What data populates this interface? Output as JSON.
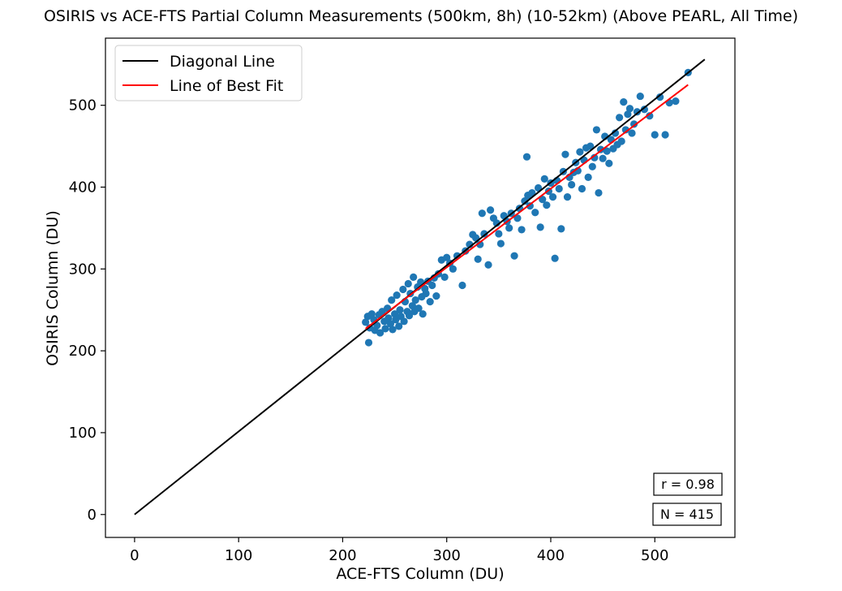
{
  "chart_data": {
    "type": "scatter",
    "title": "OSIRIS vs ACE-FTS Partial Column Measurements (500km, 8h) (10-52km) (Above PEARL, All Time)",
    "xlabel": "ACE-FTS Column (DU)",
    "ylabel": "OSIRIS Column (DU)",
    "xlim": [
      -28,
      577
    ],
    "ylim": [
      -28,
      582
    ],
    "xticks": [
      0,
      100,
      200,
      300,
      400,
      500
    ],
    "yticks": [
      0,
      100,
      200,
      300,
      400,
      500
    ],
    "grid": false,
    "legend_position": "top-left",
    "legend": [
      "Diagonal Line",
      "Line of Best Fit"
    ],
    "stats": [
      "r = 0.98",
      "N = 415"
    ],
    "lines": [
      {
        "name": "Diagonal Line",
        "color": "#000000",
        "x": [
          0,
          548
        ],
        "y": [
          0,
          556
        ]
      },
      {
        "name": "Line of Best Fit",
        "color": "#ff0000",
        "x": [
          222,
          532
        ],
        "y": [
          227,
          525
        ]
      }
    ],
    "series": [
      {
        "color": "#1f77b4",
        "points": [
          [
            222,
            235
          ],
          [
            224,
            242
          ],
          [
            225,
            210
          ],
          [
            226,
            228
          ],
          [
            228,
            245
          ],
          [
            230,
            238
          ],
          [
            231,
            225
          ],
          [
            233,
            231
          ],
          [
            235,
            244
          ],
          [
            236,
            222
          ],
          [
            238,
            248
          ],
          [
            240,
            236
          ],
          [
            241,
            227
          ],
          [
            243,
            252
          ],
          [
            244,
            240
          ],
          [
            246,
            233
          ],
          [
            247,
            262
          ],
          [
            248,
            226
          ],
          [
            250,
            245
          ],
          [
            251,
            238
          ],
          [
            252,
            268
          ],
          [
            254,
            230
          ],
          [
            255,
            250
          ],
          [
            256,
            242
          ],
          [
            258,
            275
          ],
          [
            259,
            236
          ],
          [
            260,
            260
          ],
          [
            262,
            248
          ],
          [
            263,
            282
          ],
          [
            264,
            243
          ],
          [
            265,
            270
          ],
          [
            267,
            255
          ],
          [
            268,
            290
          ],
          [
            269,
            248
          ],
          [
            270,
            262
          ],
          [
            272,
            278
          ],
          [
            273,
            252
          ],
          [
            275,
            284
          ],
          [
            276,
            266
          ],
          [
            277,
            245
          ],
          [
            279,
            276
          ],
          [
            280,
            270
          ],
          [
            282,
            285
          ],
          [
            284,
            260
          ],
          [
            286,
            280
          ],
          [
            288,
            289
          ],
          [
            290,
            267
          ],
          [
            292,
            294
          ],
          [
            295,
            311
          ],
          [
            298,
            290
          ],
          [
            300,
            314
          ],
          [
            303,
            307
          ],
          [
            306,
            300
          ],
          [
            310,
            316
          ],
          [
            315,
            280
          ],
          [
            318,
            322
          ],
          [
            322,
            330
          ],
          [
            325,
            342
          ],
          [
            328,
            338
          ],
          [
            330,
            312
          ],
          [
            332,
            330
          ],
          [
            334,
            368
          ],
          [
            336,
            343
          ],
          [
            340,
            305
          ],
          [
            342,
            372
          ],
          [
            345,
            362
          ],
          [
            348,
            356
          ],
          [
            350,
            343
          ],
          [
            352,
            331
          ],
          [
            355,
            365
          ],
          [
            358,
            358
          ],
          [
            360,
            350
          ],
          [
            362,
            368
          ],
          [
            365,
            316
          ],
          [
            368,
            362
          ],
          [
            370,
            374
          ],
          [
            372,
            348
          ],
          [
            375,
            383
          ],
          [
            377,
            437
          ],
          [
            378,
            390
          ],
          [
            380,
            377
          ],
          [
            382,
            393
          ],
          [
            385,
            369
          ],
          [
            388,
            399
          ],
          [
            390,
            351
          ],
          [
            392,
            385
          ],
          [
            394,
            410
          ],
          [
            396,
            378
          ],
          [
            398,
            395
          ],
          [
            400,
            405
          ],
          [
            402,
            388
          ],
          [
            404,
            313
          ],
          [
            406,
            408
          ],
          [
            408,
            398
          ],
          [
            410,
            349
          ],
          [
            412,
            419
          ],
          [
            414,
            440
          ],
          [
            416,
            388
          ],
          [
            418,
            412
          ],
          [
            420,
            403
          ],
          [
            422,
            418
          ],
          [
            424,
            430
          ],
          [
            426,
            420
          ],
          [
            428,
            443
          ],
          [
            430,
            398
          ],
          [
            432,
            433
          ],
          [
            434,
            448
          ],
          [
            436,
            412
          ],
          [
            438,
            450
          ],
          [
            440,
            425
          ],
          [
            442,
            436
          ],
          [
            444,
            470
          ],
          [
            446,
            393
          ],
          [
            448,
            446
          ],
          [
            450,
            435
          ],
          [
            452,
            462
          ],
          [
            454,
            444
          ],
          [
            456,
            429
          ],
          [
            458,
            458
          ],
          [
            460,
            447
          ],
          [
            462,
            466
          ],
          [
            464,
            452
          ],
          [
            466,
            485
          ],
          [
            468,
            456
          ],
          [
            470,
            504
          ],
          [
            472,
            470
          ],
          [
            474,
            489
          ],
          [
            476,
            496
          ],
          [
            478,
            466
          ],
          [
            480,
            477
          ],
          [
            483,
            492
          ],
          [
            486,
            511
          ],
          [
            490,
            495
          ],
          [
            495,
            487
          ],
          [
            500,
            464
          ],
          [
            505,
            510
          ],
          [
            510,
            464
          ],
          [
            514,
            503
          ],
          [
            520,
            505
          ],
          [
            532,
            540
          ]
        ]
      }
    ]
  }
}
